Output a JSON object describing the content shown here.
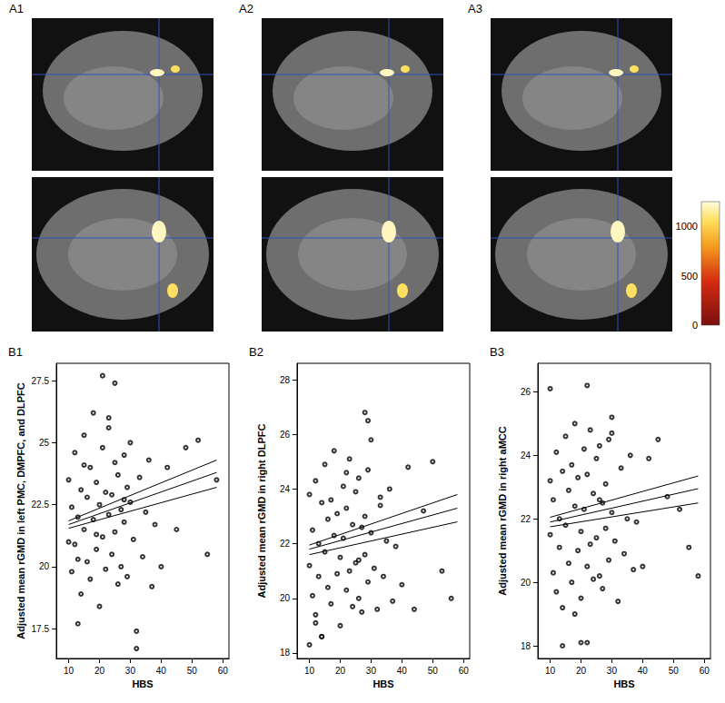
{
  "panels": [
    {
      "label": "A1"
    },
    {
      "label": "A2"
    },
    {
      "label": "A3"
    }
  ],
  "colorbar": {
    "range": [
      0,
      1250
    ],
    "ticks": [
      0,
      500,
      1000
    ]
  },
  "chart_data": [
    {
      "type": "scatter",
      "title": "B1",
      "x_label": "HBS",
      "y_label": "Adjusted mean rGMD in left PMC, DMPFC, and DLPFC",
      "xlim": [
        6,
        62
      ],
      "xticks": [
        10,
        20,
        30,
        40,
        50,
        60
      ],
      "ylim": [
        16.3,
        28.2
      ],
      "yticks": [
        17.5,
        20,
        22.5,
        25,
        27.5
      ],
      "grid": false,
      "series": [
        {
          "type": "scatter",
          "marker": "circle",
          "color": "#000000",
          "x": [
            10,
            10,
            11,
            11,
            12,
            12,
            13,
            13,
            14,
            14,
            15,
            15,
            16,
            16,
            17,
            17,
            18,
            18,
            19,
            19,
            20,
            20,
            21,
            21,
            22,
            22,
            23,
            23,
            24,
            24,
            25,
            25,
            26,
            26,
            27,
            27,
            28,
            28,
            29,
            29,
            30,
            30,
            31,
            32,
            33,
            34,
            35,
            36,
            37,
            38,
            40,
            42,
            45,
            48,
            52,
            55,
            58,
            21,
            25,
            32,
            13,
            19,
            23,
            28,
            15
          ],
          "values": [
            21.0,
            23.5,
            19.8,
            22.4,
            24.6,
            20.9,
            17.7,
            22.0,
            23.1,
            18.9,
            21.5,
            25.3,
            20.2,
            22.8,
            24.0,
            19.5,
            21.9,
            26.2,
            20.7,
            23.4,
            22.5,
            18.4,
            24.8,
            21.2,
            19.9,
            23.0,
            22.1,
            25.6,
            20.5,
            22.9,
            24.2,
            21.4,
            19.3,
            23.7,
            22.3,
            20.0,
            24.5,
            21.8,
            23.2,
            19.6,
            22.6,
            25.0,
            21.1,
            17.4,
            23.6,
            20.4,
            22.2,
            24.3,
            19.2,
            21.7,
            20.0,
            24.0,
            21.5,
            24.8,
            25.1,
            20.5,
            23.5,
            27.7,
            27.4,
            16.7,
            20.3,
            21.3,
            26.0,
            22.7,
            24.1
          ]
        },
        {
          "type": "line",
          "line_style": "solid",
          "color": "#000000",
          "x": [
            10,
            58
          ],
          "values": [
            21.85,
            24.3
          ]
        },
        {
          "type": "line",
          "line_style": "solid",
          "color": "#000000",
          "x": [
            10,
            58
          ],
          "values": [
            21.7,
            23.8
          ]
        },
        {
          "type": "line",
          "line_style": "solid",
          "color": "#000000",
          "x": [
            10,
            58
          ],
          "values": [
            21.55,
            23.2
          ]
        }
      ]
    },
    {
      "type": "scatter",
      "title": "B2",
      "x_label": "HBS",
      "y_label": "Adjusted mean rGMD in right DLPFC",
      "xlim": [
        6,
        62
      ],
      "xticks": [
        10,
        20,
        30,
        40,
        50,
        60
      ],
      "ylim": [
        17.8,
        28.6
      ],
      "yticks": [
        18,
        20,
        22,
        24,
        26,
        28
      ],
      "grid": false,
      "series": [
        {
          "type": "scatter",
          "marker": "circle",
          "color": "#000000",
          "x": [
            10,
            10,
            11,
            11,
            12,
            12,
            13,
            13,
            14,
            14,
            15,
            15,
            16,
            16,
            17,
            17,
            18,
            18,
            19,
            19,
            20,
            20,
            21,
            21,
            22,
            22,
            23,
            23,
            24,
            24,
            25,
            25,
            26,
            26,
            27,
            27,
            28,
            28,
            29,
            29,
            30,
            30,
            31,
            32,
            33,
            34,
            35,
            36,
            37,
            38,
            40,
            42,
            44,
            47,
            50,
            53,
            56,
            28,
            29,
            10,
            14,
            22,
            26,
            33,
            12
          ],
          "values": [
            21.2,
            23.8,
            20.1,
            22.5,
            24.3,
            19.4,
            22.0,
            20.8,
            23.5,
            18.6,
            21.7,
            24.9,
            20.4,
            22.9,
            23.6,
            19.8,
            22.3,
            25.4,
            20.9,
            23.1,
            21.5,
            19.0,
            24.1,
            22.2,
            20.3,
            23.3,
            21.0,
            25.1,
            19.7,
            22.7,
            23.9,
            21.3,
            20.0,
            24.4,
            22.6,
            19.5,
            23.0,
            21.6,
            24.7,
            20.6,
            22.4,
            25.8,
            21.1,
            19.6,
            23.4,
            20.8,
            22.1,
            24.0,
            19.9,
            21.9,
            20.5,
            24.8,
            19.6,
            23.2,
            25.0,
            21.0,
            20.0,
            26.8,
            26.5,
            18.3,
            18.6,
            24.6,
            21.4,
            23.7,
            19.1
          ]
        },
        {
          "type": "line",
          "line_style": "solid",
          "color": "#000000",
          "x": [
            10,
            58
          ],
          "values": [
            21.95,
            23.8
          ]
        },
        {
          "type": "line",
          "line_style": "solid",
          "color": "#000000",
          "x": [
            10,
            58
          ],
          "values": [
            21.8,
            23.3
          ]
        },
        {
          "type": "line",
          "line_style": "solid",
          "color": "#000000",
          "x": [
            10,
            58
          ],
          "values": [
            21.6,
            22.8
          ]
        }
      ]
    },
    {
      "type": "scatter",
      "title": "B3",
      "x_label": "HBS",
      "y_label": "Adjusted mean rGMD in right aMCC",
      "xlim": [
        6,
        62
      ],
      "xticks": [
        10,
        20,
        30,
        40,
        50,
        60
      ],
      "ylim": [
        17.6,
        26.9
      ],
      "yticks": [
        18,
        20,
        22,
        24,
        26
      ],
      "grid": false,
      "series": [
        {
          "type": "scatter",
          "marker": "circle",
          "color": "#000000",
          "x": [
            10,
            10,
            11,
            11,
            12,
            12,
            13,
            13,
            14,
            14,
            15,
            15,
            16,
            16,
            17,
            17,
            18,
            18,
            19,
            19,
            20,
            20,
            21,
            21,
            22,
            22,
            23,
            23,
            24,
            24,
            25,
            25,
            26,
            26,
            27,
            27,
            28,
            28,
            29,
            29,
            30,
            30,
            31,
            32,
            33,
            34,
            35,
            36,
            37,
            38,
            40,
            42,
            45,
            48,
            52,
            55,
            58,
            22,
            10,
            20,
            22,
            14,
            30,
            18,
            26
          ],
          "values": [
            21.5,
            23.2,
            20.3,
            22.6,
            24.1,
            19.7,
            22.0,
            21.1,
            23.5,
            19.2,
            21.8,
            24.6,
            20.6,
            22.9,
            23.7,
            20.0,
            22.4,
            25.0,
            21.0,
            23.3,
            21.6,
            19.5,
            24.2,
            22.3,
            20.5,
            23.4,
            21.2,
            24.8,
            20.1,
            22.8,
            23.9,
            21.4,
            20.2,
            24.3,
            22.5,
            19.8,
            23.1,
            21.7,
            24.5,
            20.7,
            22.2,
            25.2,
            21.3,
            19.4,
            23.6,
            20.9,
            22.0,
            24.0,
            20.4,
            21.9,
            20.5,
            23.9,
            24.5,
            22.7,
            22.3,
            21.1,
            20.2,
            26.2,
            26.1,
            18.1,
            18.1,
            18.0,
            24.7,
            19.0,
            22.6
          ]
        },
        {
          "type": "line",
          "line_style": "solid",
          "color": "#000000",
          "x": [
            10,
            58
          ],
          "values": [
            22.05,
            23.35
          ]
        },
        {
          "type": "line",
          "line_style": "solid",
          "color": "#000000",
          "x": [
            10,
            58
          ],
          "values": [
            21.9,
            22.95
          ]
        },
        {
          "type": "line",
          "line_style": "solid",
          "color": "#000000",
          "x": [
            10,
            58
          ],
          "values": [
            21.75,
            22.5
          ]
        }
      ]
    }
  ]
}
